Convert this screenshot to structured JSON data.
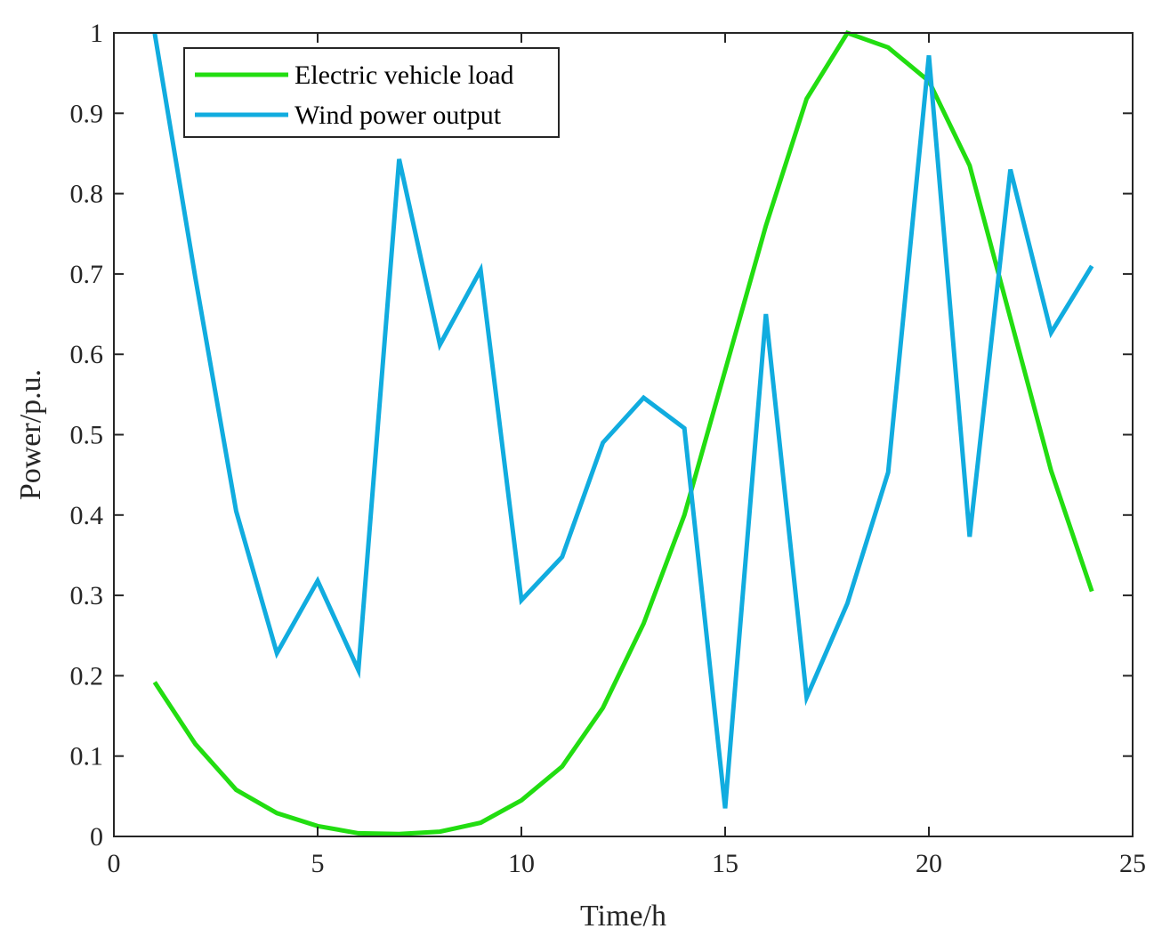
{
  "chart_data": {
    "type": "line",
    "title": "",
    "xlabel": "Time/h",
    "ylabel": "Power/p.u.",
    "xlim": [
      0,
      25
    ],
    "ylim": [
      0,
      1
    ],
    "xticks": [
      0,
      5,
      10,
      15,
      20,
      25
    ],
    "yticks": [
      0,
      0.1,
      0.2,
      0.3,
      0.4,
      0.5,
      0.6,
      0.7,
      0.8,
      0.9,
      1
    ],
    "xtick_labels": [
      "0",
      "5",
      "10",
      "15",
      "20",
      "25"
    ],
    "ytick_labels": [
      "0",
      "0.1",
      "0.2",
      "0.3",
      "0.4",
      "0.5",
      "0.6",
      "0.7",
      "0.8",
      "0.9",
      "1"
    ],
    "grid": false,
    "legend_position": "top-left",
    "x": [
      1,
      2,
      3,
      4,
      5,
      6,
      7,
      8,
      9,
      10,
      11,
      12,
      13,
      14,
      15,
      16,
      17,
      18,
      19,
      20,
      21,
      22,
      23,
      24
    ],
    "series": [
      {
        "name": "Electric vehicle load",
        "color": "#22dd11",
        "values": [
          0.192,
          0.115,
          0.058,
          0.029,
          0.013,
          0.004,
          0.003,
          0.006,
          0.017,
          0.045,
          0.087,
          0.16,
          0.265,
          0.4,
          0.58,
          0.76,
          0.918,
          1.0,
          0.982,
          0.94,
          0.835,
          0.645,
          0.455,
          0.305
        ]
      },
      {
        "name": "Wind power output",
        "color": "#11acdf",
        "values": [
          1.0,
          0.695,
          0.405,
          0.228,
          0.318,
          0.207,
          0.843,
          0.612,
          0.705,
          0.294,
          0.348,
          0.49,
          0.546,
          0.508,
          0.035,
          0.65,
          0.173,
          0.29,
          0.453,
          0.972,
          0.373,
          0.83,
          0.627,
          0.71
        ]
      }
    ]
  }
}
